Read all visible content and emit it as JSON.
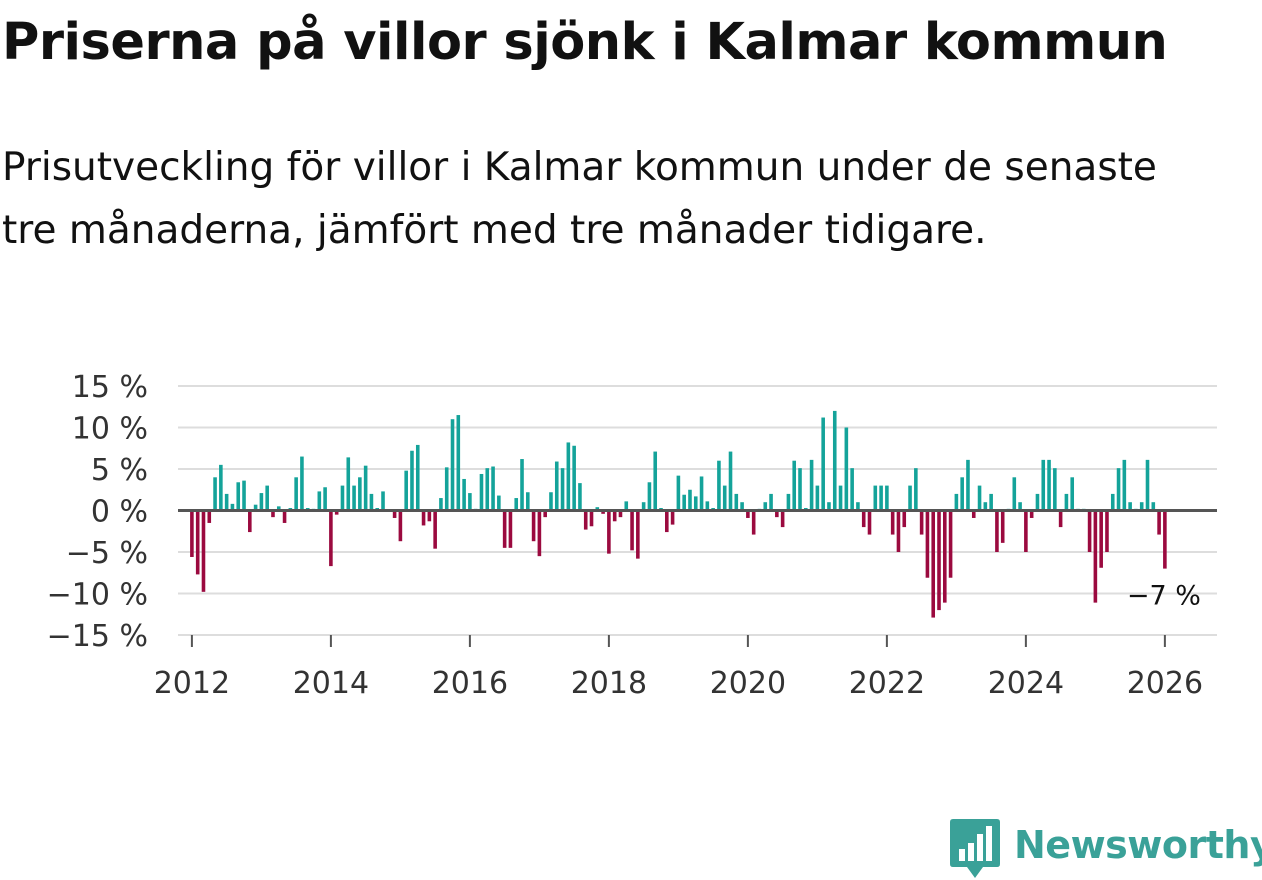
{
  "title": "Priserna på villor sjönk i Kalmar kommun",
  "subtitle": "Prisutveckling för villor i Kalmar kommun under de senaste tre månaderna, jämfört med tre månader tidigare.",
  "colors": {
    "positive": "#14a39a",
    "negative": "#9b0a3f",
    "zero_line": "#555555",
    "grid": "#dddddd",
    "brand": "#3aa198"
  },
  "brand": {
    "name": "Newsworthy",
    "icon": "bar-chart-icon"
  },
  "chart_data": {
    "type": "bar",
    "title": "Priserna på villor sjönk i Kalmar kommun",
    "xlabel": "",
    "ylabel": "",
    "ylim": [
      -15,
      15
    ],
    "xlim": [
      2011.8,
      2026.75
    ],
    "yticks": [
      15,
      10,
      5,
      0,
      -5,
      -10,
      -15
    ],
    "ytick_labels": [
      "15 %",
      "10 %",
      "5 %",
      "0 %",
      "−5 %",
      "−10 %",
      "−15 %"
    ],
    "xticks": [
      2012,
      2014,
      2016,
      2018,
      2020,
      2022,
      2024,
      2026
    ],
    "xtick_labels": [
      "2012",
      "2014",
      "2016",
      "2018",
      "2020",
      "2022",
      "2024",
      "2026"
    ],
    "grid": true,
    "start": "2012-01",
    "frequency": "monthly",
    "last_value_label": "−7 %",
    "values": [
      -5.6,
      -7.7,
      -9.8,
      -1.5,
      4.0,
      5.5,
      2.0,
      0.8,
      3.4,
      3.6,
      -2.6,
      0.7,
      2.1,
      3.0,
      -0.8,
      0.5,
      -1.5,
      0.3,
      4.0,
      6.5,
      0.3,
      0.2,
      2.3,
      2.8,
      -6.7,
      -0.5,
      3.0,
      6.4,
      3.0,
      4.0,
      5.4,
      2.0,
      0.3,
      2.3,
      0.0,
      -0.9,
      -3.7,
      4.8,
      7.2,
      7.9,
      -1.8,
      -1.3,
      -4.6,
      1.5,
      5.2,
      11.0,
      11.5,
      3.8,
      2.1,
      0.2,
      4.4,
      5.1,
      5.3,
      1.8,
      -4.5,
      -4.5,
      1.5,
      6.2,
      2.2,
      -3.7,
      -5.5,
      -0.8,
      2.2,
      5.9,
      5.1,
      8.2,
      7.8,
      3.3,
      -2.3,
      -1.9,
      0.4,
      -0.4,
      -5.2,
      -1.3,
      -0.8,
      1.1,
      -4.8,
      -5.8,
      1.0,
      3.4,
      7.1,
      0.3,
      -2.6,
      -1.7,
      4.2,
      1.9,
      2.5,
      1.7,
      4.1,
      1.1,
      0.3,
      6.0,
      3.0,
      7.1,
      2.0,
      1.0,
      -0.9,
      -2.9,
      0.2,
      1.0,
      2.0,
      -0.8,
      -2.0,
      2.0,
      6.0,
      5.1,
      0.3,
      6.1,
      3.0,
      11.2,
      1.0,
      12.0,
      3.0,
      10.0,
      5.1,
      1.0,
      -2.0,
      -2.9,
      3.0,
      3.0,
      3.0,
      -2.9,
      -5.0,
      -2.0,
      3.0,
      5.1,
      -2.9,
      -8.1,
      -12.9,
      -12.0,
      -11.1,
      -8.1,
      2.0,
      4.0,
      6.1,
      -0.9,
      3.0,
      1.0,
      2.0,
      -5.0,
      -3.9,
      0.2,
      4.0,
      1.0,
      -5.0,
      -0.9,
      2.0,
      6.1,
      6.1,
      5.1,
      -2.0,
      2.0,
      4.0,
      0.2,
      0.2,
      -5.0,
      -11.1,
      -6.9,
      -5.0,
      2.0,
      5.1,
      6.1,
      1.0,
      0.2,
      1.0,
      6.1,
      1.0,
      -2.9,
      -7.0
    ]
  }
}
